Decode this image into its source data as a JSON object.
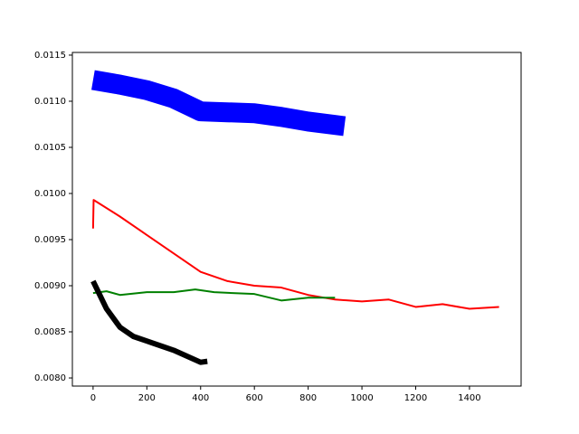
{
  "chart_data": {
    "type": "line",
    "xlim": [
      -77,
      1592
    ],
    "ylim": [
      0.007912,
      0.011529
    ],
    "xticks": [
      0,
      200,
      400,
      600,
      800,
      1000,
      1200,
      1400
    ],
    "yticks": [
      {
        "value": 0.008,
        "label": "0.0080"
      },
      {
        "value": 0.0085,
        "label": "0.0085"
      },
      {
        "value": 0.009,
        "label": "0.0090"
      },
      {
        "value": 0.0095,
        "label": "0.0095"
      },
      {
        "value": 0.01,
        "label": "0.0100"
      },
      {
        "value": 0.0105,
        "label": "0.0105"
      },
      {
        "value": 0.011,
        "label": "0.0110"
      },
      {
        "value": 0.0115,
        "label": "0.0115"
      }
    ],
    "series": [
      {
        "color": "#0000ff",
        "x": [
          0,
          100,
          200,
          300,
          400,
          500,
          600,
          700,
          800,
          935
        ],
        "values": [
          0.01123,
          0.01118,
          0.01112,
          0.01103,
          0.01089,
          0.01088,
          0.01087,
          0.01083,
          0.01078,
          0.01073
        ]
      },
      {
        "color": "#ff0000",
        "x": [
          0,
          2,
          100,
          200,
          300,
          400,
          500,
          600,
          700,
          800,
          900,
          1000,
          1100,
          1200,
          1300,
          1400,
          1510
        ],
        "values": [
          0.00962,
          0.00993,
          0.00975,
          0.00955,
          0.00935,
          0.00915,
          0.00905,
          0.009,
          0.00898,
          0.0089,
          0.00885,
          0.00883,
          0.00885,
          0.00877,
          0.0088,
          0.00875,
          0.00877
        ]
      },
      {
        "color": "#008000",
        "x": [
          0,
          50,
          100,
          200,
          300,
          380,
          450,
          600,
          700,
          800,
          900
        ],
        "values": [
          0.00892,
          0.00894,
          0.0089,
          0.00893,
          0.00893,
          0.00896,
          0.00893,
          0.00891,
          0.00884,
          0.00887,
          0.00887
        ]
      },
      {
        "color": "#000000",
        "x": [
          0,
          20,
          50,
          100,
          150,
          200,
          300,
          400,
          425
        ],
        "values": [
          0.00905,
          0.00893,
          0.00875,
          0.00855,
          0.00845,
          0.0084,
          0.0083,
          0.00817,
          0.00818
        ]
      }
    ]
  }
}
